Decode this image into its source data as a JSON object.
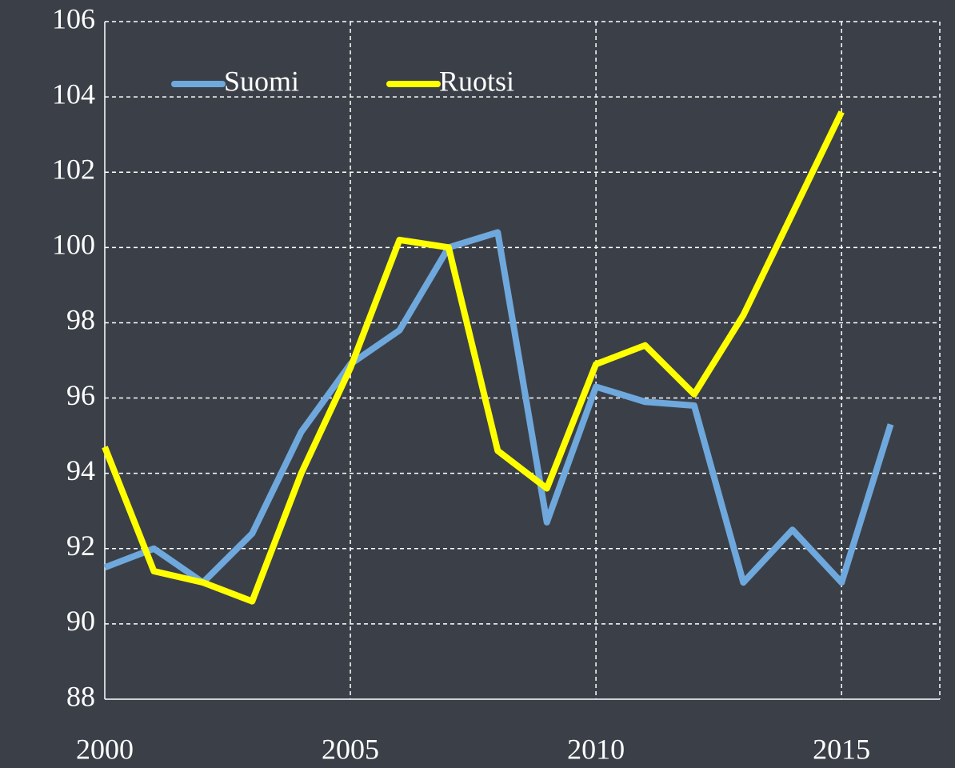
{
  "chart_data": {
    "type": "line",
    "x": [
      2000,
      2001,
      2002,
      2003,
      2004,
      2005,
      2006,
      2007,
      2008,
      2009,
      2010,
      2011,
      2012,
      2013,
      2014,
      2015,
      2016
    ],
    "series": [
      {
        "name": "Suomi",
        "color": "#6fa8dc",
        "values": [
          91.5,
          92.0,
          91.1,
          92.4,
          95.1,
          96.9,
          97.8,
          100.0,
          100.4,
          92.7,
          96.3,
          95.9,
          95.8,
          91.1,
          92.5,
          91.1,
          95.3
        ]
      },
      {
        "name": "Ruotsi",
        "color": "#ffff00",
        "values": [
          94.7,
          91.4,
          91.1,
          90.6,
          94.0,
          96.8,
          100.2,
          100.0,
          94.6,
          93.6,
          96.9,
          97.4,
          96.1,
          98.2,
          100.9,
          103.6,
          null
        ]
      }
    ],
    "xlim": [
      2000,
      2017
    ],
    "xticks": [
      2000,
      2005,
      2010,
      2015
    ],
    "ylim": [
      88,
      106
    ],
    "yticks": [
      88,
      90,
      92,
      94,
      96,
      98,
      100,
      102,
      104,
      106
    ],
    "grid": true,
    "legend": "top"
  }
}
